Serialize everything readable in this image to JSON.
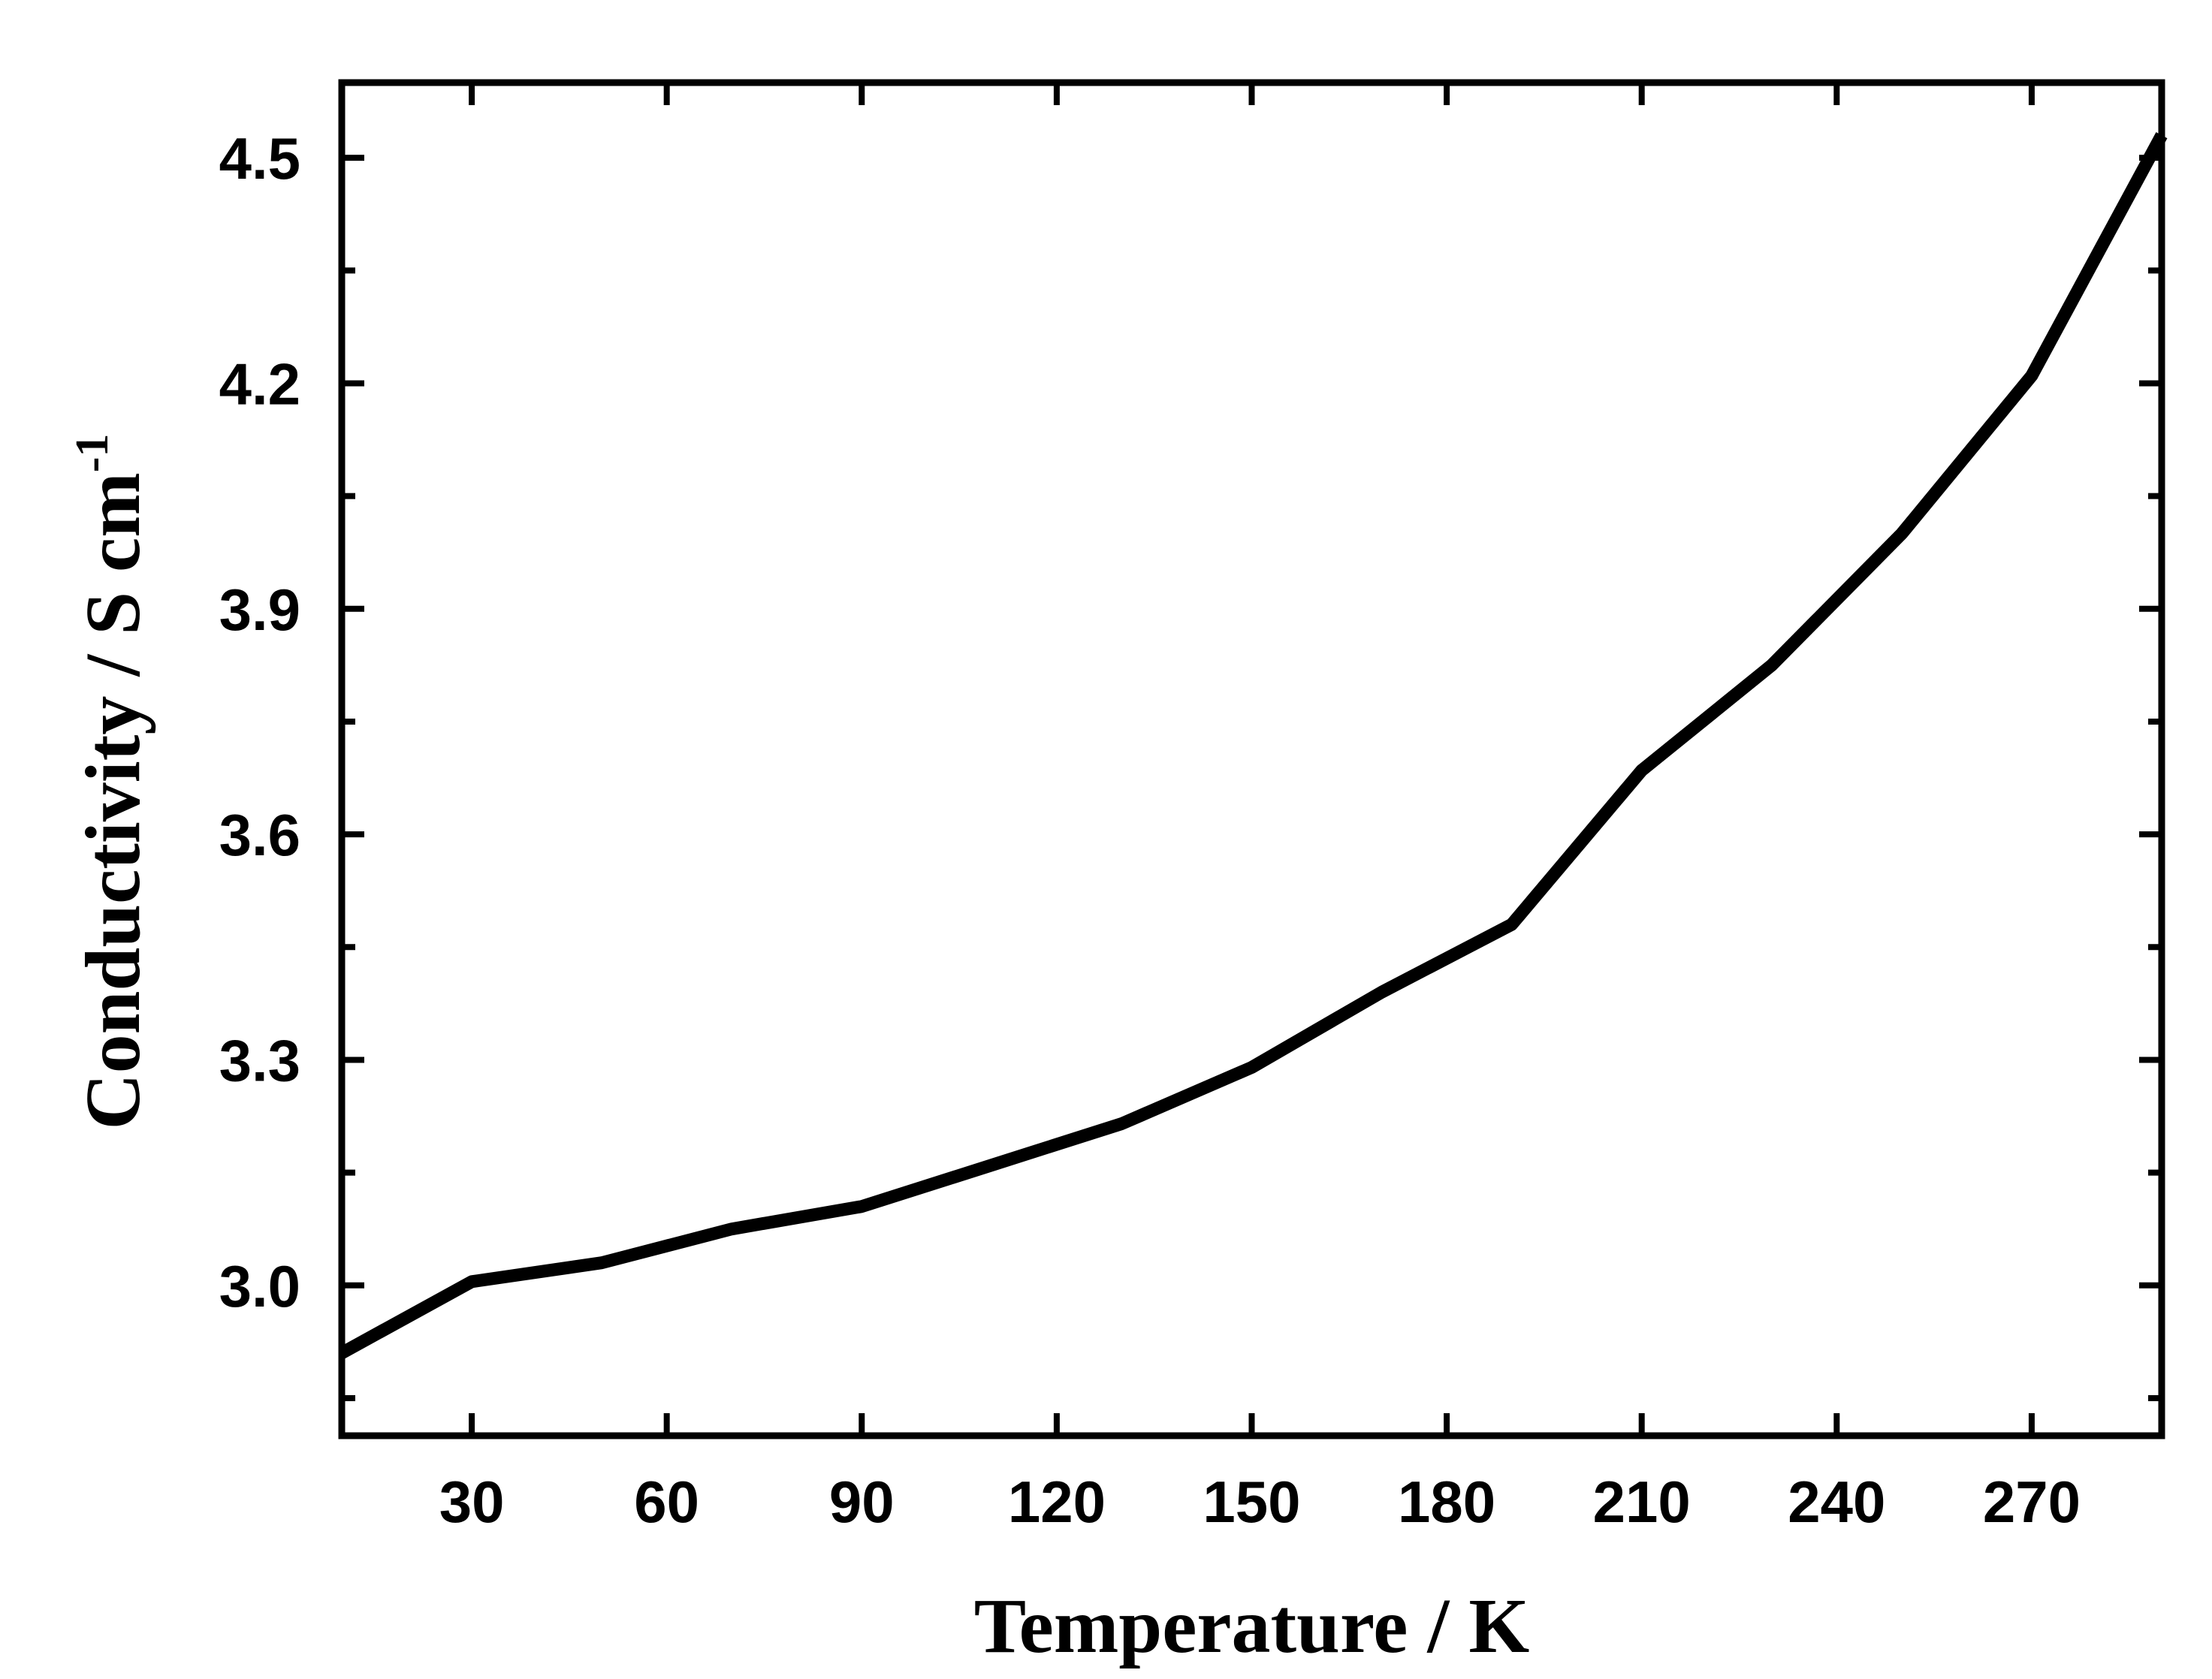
{
  "chart_data": {
    "type": "line",
    "title": "",
    "xlabel": "Temperature / K",
    "ylabel_main": "Conductivity / S cm",
    "ylabel_superscript": "-1",
    "xlim": [
      10,
      290
    ],
    "ylim": [
      2.8,
      4.6
    ],
    "x_ticks": [
      30,
      60,
      90,
      120,
      150,
      180,
      210,
      240,
      270
    ],
    "y_ticks": [
      "3.0",
      "3.3",
      "3.6",
      "3.9",
      "4.2",
      "4.5"
    ],
    "grid": false,
    "legend": "none",
    "series": [
      {
        "color": "#000000",
        "x": [
          10,
          30,
          50,
          70,
          90,
          110,
          130,
          150,
          170,
          190,
          210,
          230,
          250,
          270,
          290
        ],
        "y": [
          2.91,
          3.005,
          3.03,
          3.075,
          3.105,
          3.16,
          3.215,
          3.29,
          3.39,
          3.48,
          3.685,
          3.825,
          4.0,
          4.21,
          4.53
        ]
      }
    ]
  }
}
